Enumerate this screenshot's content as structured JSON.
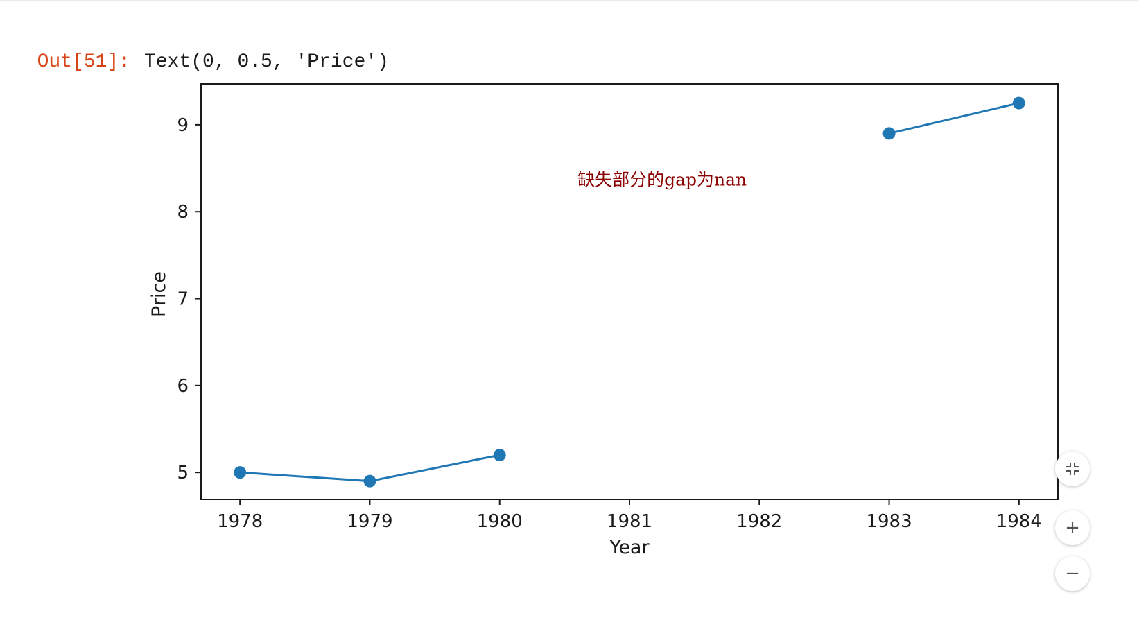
{
  "output": {
    "prompt": "Out[51]:",
    "text": "Text(0, 0.5, 'Price')"
  },
  "chart_data": {
    "type": "line",
    "series": [
      {
        "x": [
          1978,
          1979,
          1980,
          1981,
          1982,
          1983,
          1984
        ],
        "y": [
          5.0,
          4.9,
          5.2,
          null,
          null,
          8.9,
          9.25
        ],
        "color": "#1f77b4",
        "marker": "o"
      }
    ],
    "xlabel": "Year",
    "ylabel": "Price",
    "xticks": [
      "1978",
      "1979",
      "1980",
      "1981",
      "1982",
      "1983",
      "1984"
    ],
    "yticks": [
      "5",
      "6",
      "7",
      "8",
      "9"
    ],
    "xlim": [
      1977.7,
      1984.3
    ],
    "ylim": [
      4.69,
      9.47
    ],
    "annotation": {
      "text": "缺失部分的gap为nan",
      "x": 1980.6,
      "y": 8.3,
      "color": "#8b0000"
    },
    "grid": false
  },
  "controls": {
    "fit_icon": "compress-icon",
    "zoom_in_label": "+",
    "zoom_out_label": "−"
  }
}
